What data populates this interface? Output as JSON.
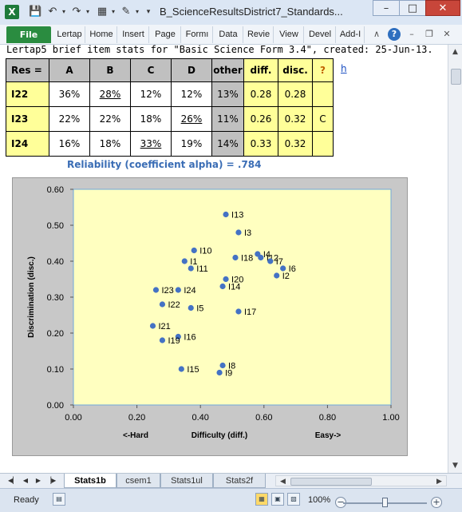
{
  "window": {
    "title": "B_ScienceResultsDistrict7_Standards...",
    "app_icon": "X",
    "minimize": "–",
    "maximize": "□",
    "close": "✕"
  },
  "quick_access": [
    "save-icon",
    "undo-icon",
    "redo-icon",
    "layout-icon",
    "brush-icon",
    "customize-icon"
  ],
  "ribbon": {
    "file": "File",
    "tabs": [
      "Lertap",
      "Home",
      "Insert",
      "Page",
      "Formı",
      "Data",
      "Revie",
      "View",
      "Devel",
      "Add-I"
    ]
  },
  "sheet": {
    "caption": "Lertap5 brief item stats for \"Basic Science Form 3.4\", created: 25-Jun-13.",
    "caption_link": "h",
    "table": {
      "headers": [
        "Res =",
        "A",
        "B",
        "C",
        "D",
        "other",
        "diff.",
        "disc.",
        "?"
      ],
      "rows": [
        {
          "item": "I22",
          "A": "36%",
          "B": "28%",
          "C": "12%",
          "D": "12%",
          "other": "13%",
          "diff": "0.28",
          "disc": "0.28",
          "flag": "",
          "key": "B"
        },
        {
          "item": "I23",
          "A": "22%",
          "B": "22%",
          "C": "18%",
          "D": "26%",
          "other": "11%",
          "diff": "0.26",
          "disc": "0.32",
          "flag": "C",
          "key": "D"
        },
        {
          "item": "I24",
          "A": "16%",
          "B": "18%",
          "C": "33%",
          "D": "19%",
          "other": "14%",
          "diff": "0.33",
          "disc": "0.32",
          "flag": "",
          "key": "C"
        }
      ]
    },
    "reliability": "Reliability (coefficient alpha) =  .784"
  },
  "chart_data": {
    "type": "scatter",
    "title": "",
    "xlabel": "Difficulty (diff.)",
    "ylabel": "Discrimination (disc.)",
    "x_left_note": "<-Hard",
    "x_right_note": "Easy->",
    "xlim": [
      0,
      1
    ],
    "ylim": [
      0,
      0.6
    ],
    "xticks": [
      "0.00",
      "0.20",
      "0.40",
      "0.60",
      "0.80",
      "1.00"
    ],
    "yticks": [
      "0.00",
      "0.10",
      "0.20",
      "0.30",
      "0.40",
      "0.50",
      "0.60"
    ],
    "grid": false,
    "point_color": "#4472c4",
    "plot_bg": "#ffffc0",
    "points": [
      {
        "label": "I13",
        "x": 0.48,
        "y": 0.53
      },
      {
        "label": "I3",
        "x": 0.52,
        "y": 0.48
      },
      {
        "label": "I4",
        "x": 0.58,
        "y": 0.42
      },
      {
        "label": "I12",
        "x": 0.59,
        "y": 0.41
      },
      {
        "label": "I7",
        "x": 0.62,
        "y": 0.4
      },
      {
        "label": "I18",
        "x": 0.51,
        "y": 0.41
      },
      {
        "label": "I10",
        "x": 0.38,
        "y": 0.43
      },
      {
        "label": "I1",
        "x": 0.35,
        "y": 0.4
      },
      {
        "label": "I11",
        "x": 0.37,
        "y": 0.38
      },
      {
        "label": "I6",
        "x": 0.66,
        "y": 0.38
      },
      {
        "label": "I2",
        "x": 0.64,
        "y": 0.36
      },
      {
        "label": "I20",
        "x": 0.48,
        "y": 0.35
      },
      {
        "label": "I14",
        "x": 0.47,
        "y": 0.33
      },
      {
        "label": "I23",
        "x": 0.26,
        "y": 0.32
      },
      {
        "label": "I24",
        "x": 0.33,
        "y": 0.32
      },
      {
        "label": "I22",
        "x": 0.28,
        "y": 0.28
      },
      {
        "label": "I5",
        "x": 0.37,
        "y": 0.27
      },
      {
        "label": "I17",
        "x": 0.52,
        "y": 0.26
      },
      {
        "label": "I21",
        "x": 0.25,
        "y": 0.22
      },
      {
        "label": "I16",
        "x": 0.33,
        "y": 0.19
      },
      {
        "label": "I19",
        "x": 0.28,
        "y": 0.18
      },
      {
        "label": "I8",
        "x": 0.47,
        "y": 0.11
      },
      {
        "label": "I15",
        "x": 0.34,
        "y": 0.1
      },
      {
        "label": "I9",
        "x": 0.46,
        "y": 0.09
      }
    ]
  },
  "sheet_tabs": {
    "nav": [
      "◀▏",
      "◀",
      "▶",
      "▕▶"
    ],
    "tabs": [
      "Stats1b",
      "csem1",
      "Stats1ul",
      "Stats2f"
    ],
    "active": "Stats1b"
  },
  "status": {
    "ready": "Ready",
    "zoom": "100%",
    "zoom_level": 1.0
  }
}
